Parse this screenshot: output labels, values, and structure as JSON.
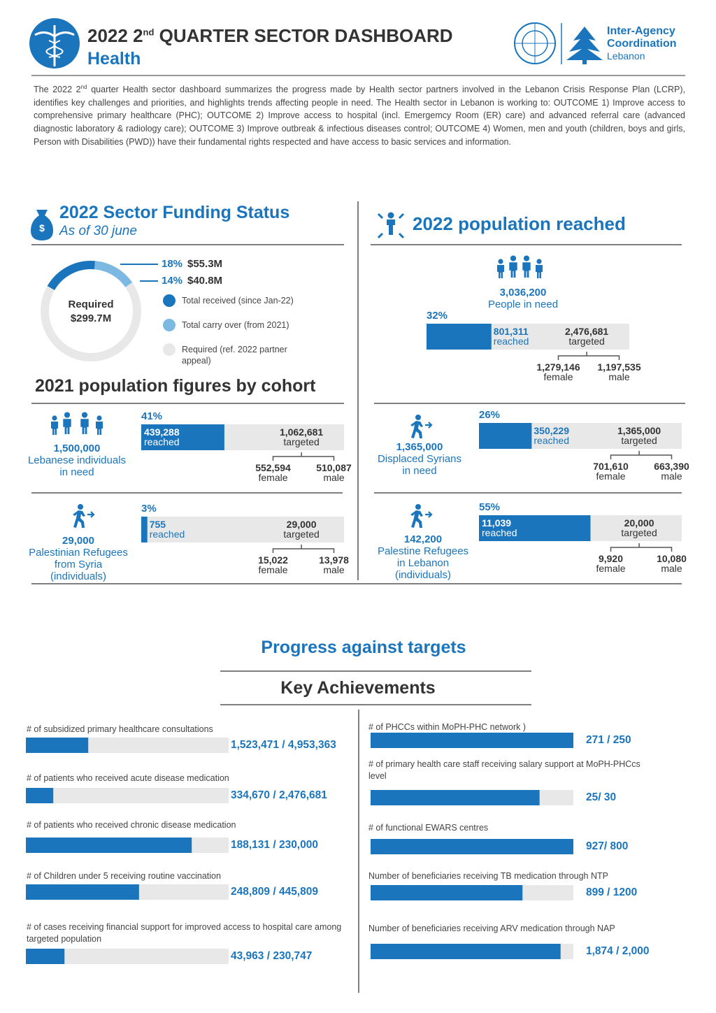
{
  "header": {
    "title_pre": "2022 2",
    "title_sup": "nd",
    "title_post": "QUARTER SECTOR DASHBOARD",
    "subtitle": "Health",
    "logo_lines": [
      "Inter-Agency",
      "Coordination",
      "Lebanon"
    ]
  },
  "intro": {
    "pre": "The 2022 2",
    "sup": "nd",
    "post": " quarter Health sector dashboard summarizes the progress made by Health sector partners involved in the Lebanon Crisis Response Plan (LCRP), identifies key challenges and priorities, and highlights trends affecting people in need. The Health sector in Lebanon is working to: OUTCOME 1) Improve access to comprehensive primary healthcare (PHC); OUTCOME 2) Improve access to hospital (incl. Emergemcy Room (ER) care) and advanced referral care (advanced diagnostic laboratory & radiology care); OUTCOME 3) Improve outbreak & infectious diseases control; OUTCOME 4) Women, men and youth (children, boys and girls, Person with Disabilities (PWD)) have their fundamental rights respected and have access to basic services and information."
  },
  "labels": {
    "reached": "reached",
    "targeted": "targeted",
    "female": "female",
    "male": "male"
  },
  "funding": {
    "title": "2022 Sector Funding Status",
    "subtitle": "As of 30 june",
    "received": {
      "percent": {
        "value": 18,
        "label": "18%"
      },
      "amount": "$55.3M",
      "legend": "Total received (since Jan-22)"
    },
    "carry_over": {
      "percent": {
        "value": 14,
        "label": "14%"
      },
      "amount": "$40.8M",
      "legend": "Total carry over (from 2021)"
    },
    "required": {
      "label": "Required",
      "amount": "$299.7M",
      "legend": "Required (ref. 2022 partner appeal)"
    }
  },
  "population_reached": {
    "title": "2022 population reached",
    "total": "3,036,200",
    "description": [
      "People in need"
    ],
    "percent": {
      "value": 32,
      "label": "32%"
    },
    "reached": "801,311",
    "targeted": "2,476,681",
    "female": "1,279,146",
    "male": "1,197,535"
  },
  "cohorts": {
    "title": "2021 population figures by cohort",
    "items": [
      {
        "total": "1,500,000",
        "description": [
          "Lebanese individuals",
          "in need"
        ],
        "percent": {
          "value": 41,
          "label": "41%"
        },
        "reached": "439,288",
        "targeted": "1,062,681",
        "female": "552,594",
        "male": "510,087"
      },
      {
        "total": "1,365,000",
        "description": [
          "Displaced Syrians",
          "in need"
        ],
        "percent": {
          "value": 26,
          "label": "26%"
        },
        "reached": "350,229",
        "targeted": "1,365,000",
        "female": "701,610",
        "male": "663,390"
      },
      {
        "total": "29,000",
        "description": [
          "Palestinian Refugees",
          "from Syria",
          "(individuals)"
        ],
        "percent": {
          "value": 3,
          "label": "3%"
        },
        "reached": "755",
        "targeted": "29,000",
        "female": "15,022",
        "male": "13,978"
      },
      {
        "total": "142,200",
        "description": [
          "Palestine Refugees",
          "in Lebanon",
          "(individuals)"
        ],
        "percent": {
          "value": 55,
          "label": "55%"
        },
        "reached": "11,039",
        "targeted": "20,000",
        "female": "9,920",
        "male": "10,080"
      }
    ]
  },
  "progress": {
    "title": "Progress against targets",
    "subtitle": "Key Achievements",
    "left": [
      {
        "label": "# of subsidized primary healthcare consultations",
        "reached": 1523471,
        "target": 4953363,
        "value_label": "1,523,471 / 4,953,363"
      },
      {
        "label": "# of patients who received acute disease medication",
        "reached": 334670,
        "target": 2476681,
        "value_label": "334,670 / 2,476,681"
      },
      {
        "label": "# of patients who received chronic disease medication",
        "reached": 188131,
        "target": 230000,
        "value_label": "188,131 / 230,000"
      },
      {
        "label": "# of Children under 5 receiving routine vaccination",
        "reached": 248809,
        "target": 445809,
        "value_label": "248,809 / 445,809"
      },
      {
        "label": "# of cases receiving financial support for improved access to hospital care among targeted population",
        "reached": 43963,
        "target": 230747,
        "value_label": "43,963 / 230,747"
      }
    ],
    "right": [
      {
        "label": "# of PHCCs within MoPH-PHC network )",
        "reached": 271,
        "target": 250,
        "value_label": "271 / 250"
      },
      {
        "label": "# of primary health care staff receiving salary support at MoPH-PHCcs level",
        "reached": 25,
        "target": 30,
        "value_label": "25/ 30"
      },
      {
        "label": "# of functional EWARS centres",
        "reached": 927,
        "target": 800,
        "value_label": "927/ 800"
      },
      {
        "label": "Number of beneficiaries receiving TB medication through NTP",
        "reached": 899,
        "target": 1200,
        "value_label": "899 / 1200"
      },
      {
        "label": "Number of beneficiaries receiving ARV medication through NAP",
        "reached": 1874,
        "target": 2000,
        "value_label": "1,874 / 2,000"
      }
    ]
  }
}
